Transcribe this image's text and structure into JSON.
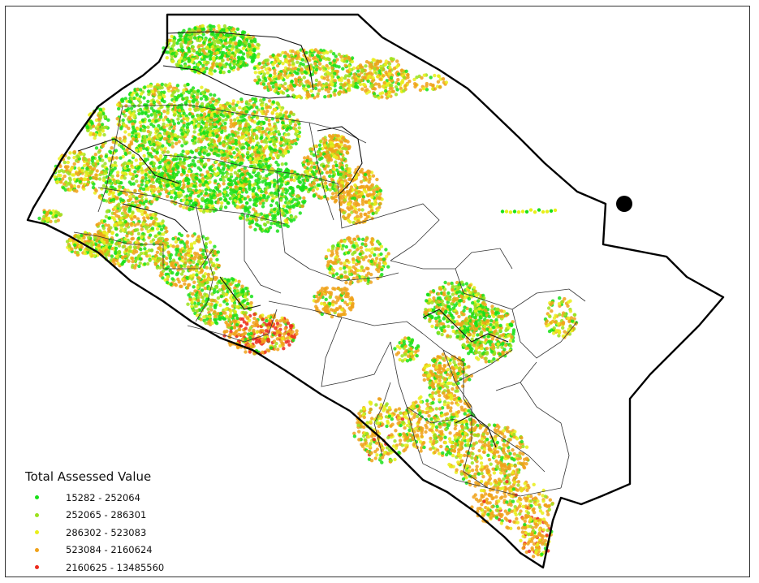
{
  "legend": {
    "title": "Total Assessed Value",
    "items": [
      {
        "label": "15282 - 252064",
        "color": "#19e019"
      },
      {
        "label": "252065 - 286301",
        "color": "#9be21e"
      },
      {
        "label": "286302 - 523083",
        "color": "#e9ef1a"
      },
      {
        "label": "523084 - 2160624",
        "color": "#f0a21a"
      },
      {
        "label": "2160625 - 13485560",
        "color": "#ec2b1e"
      }
    ]
  },
  "colors": {
    "county_boundary": "#000000",
    "city_boundary": "#333333",
    "marker": "#000000",
    "background": "#ffffff"
  }
}
